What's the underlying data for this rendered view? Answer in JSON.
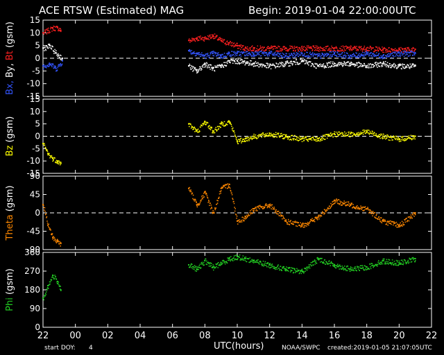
{
  "header": {
    "title": "ACE RTSW (Estimated) MAG",
    "begin": "Begin: 2019-01-04 22:00:00UTC"
  },
  "footer": {
    "start_doy_label": "start DOY:",
    "start_doy_value": "4",
    "xlabel": "UTC(hours)",
    "agency": "NOAA/SWPC",
    "created": "created:2019-01-05 21:07:05UTC"
  },
  "colors": {
    "background": "#000000",
    "axes": "#ffffff",
    "bx": "#3355ff",
    "by": "#ffffff",
    "bt": "#ff2020",
    "bz": "#ffff00",
    "theta": "#ff8800",
    "phi": "#22cc22"
  },
  "chart_data": [
    {
      "type": "scatter",
      "id": "field",
      "ylabel_parts": [
        {
          "text": "Bx,",
          "color": "#3355ff"
        },
        {
          "text": "By,",
          "color": "#ffffff"
        },
        {
          "text": "Bt",
          "color": "#ff2020"
        },
        {
          "text": "(gsm)",
          "color": "#ffffff"
        }
      ],
      "ylim": [
        -15,
        15
      ],
      "yticks": [
        15,
        10,
        5,
        0,
        -5,
        -10,
        -15
      ],
      "zero_line": 0,
      "series": [
        {
          "key": "bt",
          "color": "#ff2020",
          "x": [
            22.0,
            22.3,
            22.6,
            22.9,
            23.1,
            31.0,
            31.5,
            32.0,
            32.5,
            33.0,
            33.5,
            34.0,
            34.5,
            35.0,
            36.0,
            37.0,
            38.0,
            39.0,
            40.0,
            41.0,
            42.0,
            43.0,
            44.0,
            45.0
          ],
          "y": [
            10,
            11,
            12,
            12,
            11,
            7,
            8,
            8,
            9,
            7,
            6,
            5,
            4,
            4,
            4,
            4,
            4,
            4,
            4,
            4,
            4,
            3.5,
            3.5,
            3.5
          ]
        },
        {
          "key": "bx",
          "color": "#3355ff",
          "x": [
            22.0,
            22.4,
            22.8,
            23.2,
            31.0,
            31.5,
            32.0,
            32.5,
            33.0,
            33.5,
            34.0,
            35.0,
            36.0,
            37.0,
            38.0,
            39.0,
            40.0,
            41.0,
            42.0,
            43.0,
            44.0,
            45.0
          ],
          "y": [
            -3,
            -2,
            -4,
            -1,
            3,
            2,
            1,
            2,
            1,
            2,
            2,
            2,
            2,
            1,
            2,
            1,
            2,
            1,
            2,
            1,
            2,
            2
          ]
        },
        {
          "key": "by",
          "color": "#ffffff",
          "x": [
            22.0,
            22.4,
            22.8,
            23.2,
            31.0,
            31.5,
            32.0,
            32.5,
            33.0,
            33.5,
            34.0,
            35.0,
            36.0,
            37.0,
            38.0,
            39.0,
            40.0,
            41.0,
            42.0,
            43.0,
            44.0,
            45.0
          ],
          "y": [
            4,
            5,
            2,
            0,
            -3,
            -5,
            -2,
            -4,
            -3,
            -1,
            -1,
            -2,
            -3,
            -2,
            -1,
            -3,
            -2,
            -2,
            -3,
            -2,
            -3,
            -3
          ]
        }
      ]
    },
    {
      "type": "scatter",
      "id": "bz",
      "ylabel_parts": [
        {
          "text": "Bz",
          "color": "#ffff00"
        },
        {
          "text": "(gsm)",
          "color": "#ffffff"
        }
      ],
      "ylim": [
        -15,
        15
      ],
      "yticks": [
        15,
        10,
        5,
        0,
        -5,
        -10,
        -15
      ],
      "zero_line": 0,
      "series": [
        {
          "key": "bz",
          "color": "#ffff00",
          "x": [
            22.0,
            22.3,
            22.6,
            22.9,
            23.1,
            31.0,
            31.5,
            32.0,
            32.5,
            33.0,
            33.5,
            34.0,
            34.5,
            35.0,
            36.0,
            37.0,
            38.0,
            39.0,
            40.0,
            41.0,
            42.0,
            43.0,
            44.0,
            45.0
          ],
          "y": [
            -3,
            -7,
            -9,
            -10,
            -11,
            5,
            2,
            6,
            2,
            5,
            6,
            -2,
            -1,
            0,
            1,
            0,
            -1,
            -1,
            1,
            1,
            2,
            0,
            -1,
            0
          ]
        }
      ]
    },
    {
      "type": "scatter",
      "id": "theta",
      "ylabel_parts": [
        {
          "text": "Theta",
          "color": "#ff8800"
        },
        {
          "text": "(gsm)",
          "color": "#ffffff"
        }
      ],
      "ylim": [
        -90,
        90
      ],
      "yticks": [
        90,
        45,
        0,
        -45,
        -90
      ],
      "zero_line": 0,
      "series": [
        {
          "key": "theta",
          "color": "#ff8800",
          "x": [
            22.0,
            22.3,
            22.6,
            22.9,
            23.1,
            31.0,
            31.5,
            32.0,
            32.5,
            33.0,
            33.5,
            34.0,
            34.5,
            35.0,
            36.0,
            37.0,
            38.0,
            39.0,
            40.0,
            41.0,
            42.0,
            43.0,
            44.0,
            45.0
          ],
          "y": [
            20,
            -30,
            -60,
            -70,
            -75,
            60,
            20,
            50,
            0,
            60,
            70,
            -20,
            -10,
            10,
            20,
            -20,
            -30,
            -10,
            30,
            20,
            10,
            -20,
            -30,
            0
          ]
        }
      ]
    },
    {
      "type": "scatter",
      "id": "phi",
      "ylabel_parts": [
        {
          "text": "Phi",
          "color": "#22cc22"
        },
        {
          "text": "(gsm)",
          "color": "#ffffff"
        }
      ],
      "ylim": [
        0,
        360
      ],
      "yticks": [
        360,
        270,
        180,
        90,
        0
      ],
      "zero_line": null,
      "series": [
        {
          "key": "phi",
          "color": "#22cc22",
          "x": [
            22.0,
            22.3,
            22.6,
            22.9,
            23.1,
            31.0,
            31.5,
            32.0,
            32.5,
            33.0,
            33.5,
            34.0,
            34.5,
            35.0,
            36.0,
            37.0,
            38.0,
            39.0,
            40.0,
            41.0,
            42.0,
            43.0,
            44.0,
            45.0
          ],
          "y": [
            140,
            200,
            250,
            220,
            180,
            300,
            280,
            320,
            290,
            310,
            330,
            340,
            330,
            320,
            300,
            280,
            270,
            330,
            300,
            280,
            290,
            320,
            310,
            330
          ]
        }
      ]
    }
  ],
  "x_axis": {
    "range_hours": [
      22,
      46
    ],
    "ticks": [
      22,
      24,
      26,
      28,
      30,
      32,
      34,
      36,
      38,
      40,
      42,
      44,
      46
    ],
    "tick_labels": [
      "22",
      "00",
      "02",
      "04",
      "06",
      "08",
      "10",
      "12",
      "14",
      "16",
      "18",
      "20",
      "22"
    ]
  }
}
